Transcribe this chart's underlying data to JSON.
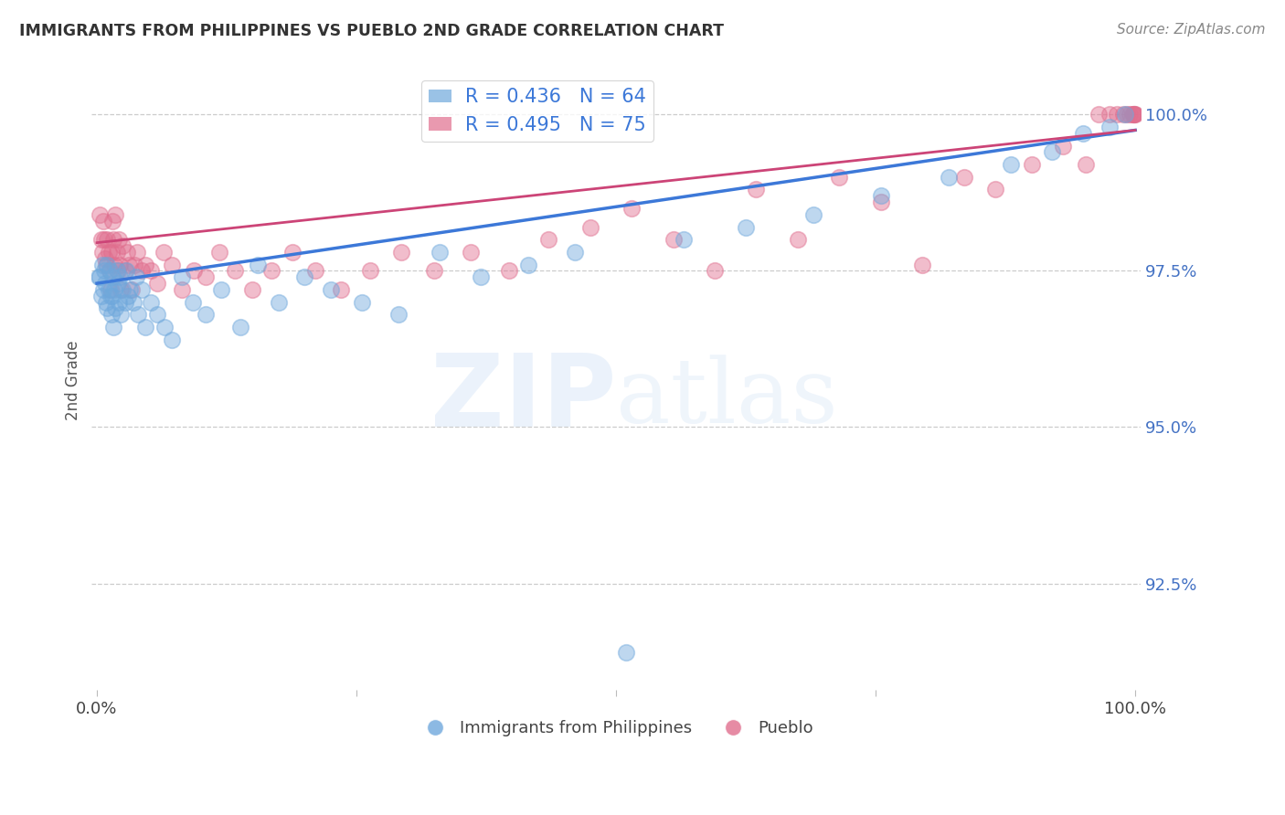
{
  "title": "IMMIGRANTS FROM PHILIPPINES VS PUEBLO 2ND GRADE CORRELATION CHART",
  "source": "Source: ZipAtlas.com",
  "ylabel": "2nd Grade",
  "blue_label": "Immigrants from Philippines",
  "pink_label": "Pueblo",
  "blue_R": 0.436,
  "blue_N": 64,
  "pink_R": 0.495,
  "pink_N": 75,
  "blue_color": "#6fa8dc",
  "pink_color": "#e06e8e",
  "blue_line_color": "#3c78d8",
  "pink_line_color": "#cc4477",
  "ytick_labels": [
    "92.5%",
    "95.0%",
    "97.5%",
    "100.0%"
  ],
  "ytick_values": [
    0.925,
    0.95,
    0.975,
    1.0
  ],
  "ytick_color": "#4472c4",
  "xlim": [
    -0.005,
    1.005
  ],
  "ylim": [
    0.908,
    1.007
  ],
  "background_color": "#ffffff",
  "blue_scatter_x": [
    0.002,
    0.003,
    0.004,
    0.005,
    0.006,
    0.007,
    0.008,
    0.009,
    0.01,
    0.01,
    0.011,
    0.012,
    0.013,
    0.014,
    0.015,
    0.015,
    0.016,
    0.017,
    0.018,
    0.019,
    0.02,
    0.021,
    0.022,
    0.023,
    0.025,
    0.027,
    0.028,
    0.03,
    0.032,
    0.035,
    0.038,
    0.04,
    0.043,
    0.047,
    0.052,
    0.058,
    0.065,
    0.072,
    0.082,
    0.092,
    0.105,
    0.12,
    0.138,
    0.155,
    0.175,
    0.2,
    0.225,
    0.255,
    0.29,
    0.33,
    0.37,
    0.415,
    0.46,
    0.51,
    0.565,
    0.625,
    0.69,
    0.755,
    0.82,
    0.88,
    0.92,
    0.95,
    0.975,
    0.99
  ],
  "blue_scatter_y": [
    0.974,
    0.974,
    0.971,
    0.976,
    0.972,
    0.975,
    0.973,
    0.97,
    0.969,
    0.976,
    0.972,
    0.975,
    0.971,
    0.968,
    0.974,
    0.971,
    0.966,
    0.972,
    0.969,
    0.975,
    0.973,
    0.97,
    0.974,
    0.968,
    0.972,
    0.97,
    0.975,
    0.971,
    0.972,
    0.97,
    0.974,
    0.968,
    0.972,
    0.966,
    0.97,
    0.968,
    0.966,
    0.964,
    0.974,
    0.97,
    0.968,
    0.972,
    0.966,
    0.976,
    0.97,
    0.974,
    0.972,
    0.97,
    0.968,
    0.978,
    0.974,
    0.976,
    0.978,
    0.914,
    0.98,
    0.982,
    0.984,
    0.987,
    0.99,
    0.992,
    0.994,
    0.997,
    0.998,
    1.0
  ],
  "pink_scatter_x": [
    0.003,
    0.004,
    0.005,
    0.006,
    0.007,
    0.008,
    0.009,
    0.01,
    0.011,
    0.012,
    0.013,
    0.014,
    0.015,
    0.016,
    0.017,
    0.018,
    0.019,
    0.02,
    0.021,
    0.022,
    0.023,
    0.025,
    0.027,
    0.029,
    0.031,
    0.033,
    0.036,
    0.039,
    0.043,
    0.047,
    0.052,
    0.058,
    0.064,
    0.072,
    0.082,
    0.093,
    0.105,
    0.118,
    0.133,
    0.15,
    0.168,
    0.188,
    0.21,
    0.235,
    0.263,
    0.293,
    0.325,
    0.36,
    0.397,
    0.435,
    0.475,
    0.515,
    0.555,
    0.595,
    0.635,
    0.675,
    0.715,
    0.755,
    0.795,
    0.835,
    0.865,
    0.9,
    0.93,
    0.952,
    0.965,
    0.975,
    0.982,
    0.988,
    0.992,
    0.995,
    0.997,
    0.998,
    0.999,
    0.999,
    1.0
  ],
  "pink_scatter_y": [
    0.984,
    0.98,
    0.978,
    0.983,
    0.98,
    0.977,
    0.976,
    0.98,
    0.978,
    0.975,
    0.972,
    0.978,
    0.983,
    0.98,
    0.976,
    0.984,
    0.978,
    0.975,
    0.98,
    0.976,
    0.972,
    0.979,
    0.975,
    0.978,
    0.976,
    0.972,
    0.976,
    0.978,
    0.975,
    0.976,
    0.975,
    0.973,
    0.978,
    0.976,
    0.972,
    0.975,
    0.974,
    0.978,
    0.975,
    0.972,
    0.975,
    0.978,
    0.975,
    0.972,
    0.975,
    0.978,
    0.975,
    0.978,
    0.975,
    0.98,
    0.982,
    0.985,
    0.98,
    0.975,
    0.988,
    0.98,
    0.99,
    0.986,
    0.976,
    0.99,
    0.988,
    0.992,
    0.995,
    0.992,
    1.0,
    1.0,
    1.0,
    1.0,
    1.0,
    1.0,
    1.0,
    1.0,
    1.0,
    1.0,
    1.0
  ]
}
